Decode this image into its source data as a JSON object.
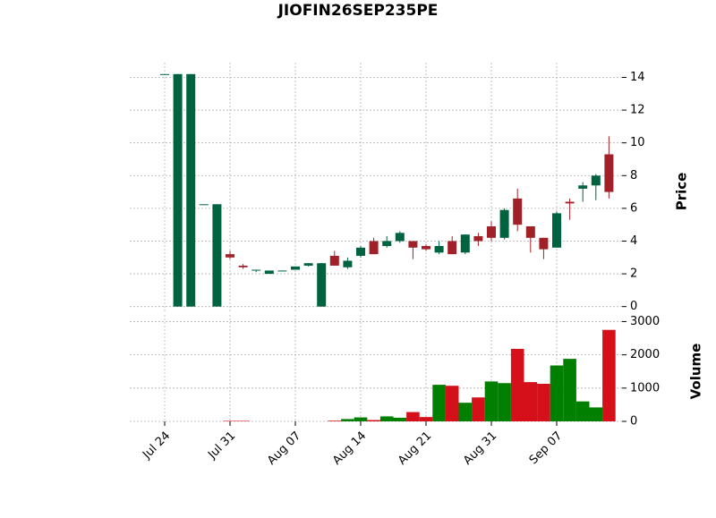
{
  "chart_data": {
    "type": "candlestick",
    "title": "JIOFIN26SEP235PE",
    "categories": [
      "Jul 24",
      null,
      null,
      null,
      null,
      "Jul 31",
      null,
      null,
      null,
      null,
      "Aug 07",
      null,
      null,
      null,
      null,
      "Aug 14",
      null,
      null,
      null,
      null,
      "Aug 21",
      null,
      null,
      null,
      null,
      "Aug 31",
      null,
      null,
      null,
      null,
      "Sep 07",
      null,
      null,
      null,
      null
    ],
    "open": [
      14.2,
      0,
      0,
      6.25,
      0,
      3.2,
      2.5,
      2.2,
      2.0,
      2.2,
      2.25,
      2.5,
      0,
      3.1,
      2.4,
      3.1,
      4.0,
      3.7,
      4.0,
      4.0,
      3.7,
      3.3,
      4.0,
      3.3,
      4.3,
      4.9,
      4.2,
      6.6,
      4.9,
      4.2,
      3.6,
      6.4,
      7.2,
      7.4,
      9.3
    ],
    "high": [
      14.2,
      14.2,
      14.2,
      6.25,
      6.25,
      3.4,
      2.6,
      2.25,
      2.2,
      2.2,
      2.45,
      2.65,
      2.65,
      3.4,
      3.0,
      3.7,
      4.2,
      4.3,
      4.6,
      4.0,
      3.8,
      4.0,
      4.3,
      4.4,
      4.5,
      5.2,
      6.0,
      7.2,
      4.9,
      4.2,
      5.8,
      6.6,
      7.6,
      8.1,
      10.4
    ],
    "low": [
      14.2,
      0,
      0,
      6.25,
      0,
      2.9,
      2.3,
      2.1,
      2.0,
      2.2,
      2.25,
      2.45,
      0,
      2.5,
      2.3,
      3.0,
      3.2,
      3.6,
      3.9,
      2.9,
      3.4,
      3.2,
      3.2,
      3.2,
      3.7,
      4.0,
      4.1,
      4.6,
      3.3,
      2.9,
      3.6,
      5.3,
      6.4,
      6.5,
      6.6
    ],
    "close": [
      14.2,
      14.2,
      14.2,
      6.25,
      6.25,
      3.0,
      2.4,
      2.25,
      2.2,
      2.2,
      2.45,
      2.65,
      2.65,
      2.5,
      2.8,
      3.6,
      3.2,
      4.0,
      4.5,
      3.6,
      3.5,
      3.7,
      3.2,
      4.4,
      4.0,
      4.2,
      5.9,
      5.0,
      4.2,
      3.5,
      5.7,
      6.3,
      7.4,
      8.0,
      7.0
    ],
    "volume": [
      0,
      0,
      0,
      0,
      0,
      15,
      15,
      0,
      0,
      0,
      0,
      0,
      0,
      20,
      70,
      120,
      40,
      150,
      110,
      280,
      130,
      1100,
      1070,
      560,
      720,
      1200,
      1150,
      2180,
      1180,
      1130,
      1680,
      1880,
      600,
      420,
      2750
    ],
    "ylabel": "Price",
    "volume_label": "Volume",
    "ylim": [
      -0.4,
      14.9
    ],
    "yticks": [
      0,
      2,
      4,
      6,
      8,
      10,
      12,
      14
    ],
    "volume_ylim": [
      0,
      3200
    ],
    "volume_yticks": [
      0,
      1000,
      2000,
      3000
    ],
    "up_color": "#006340",
    "down_color": "#a02128",
    "volume_up_color": "#007f00",
    "volume_down_color": "#d5101a",
    "grid": true
  }
}
